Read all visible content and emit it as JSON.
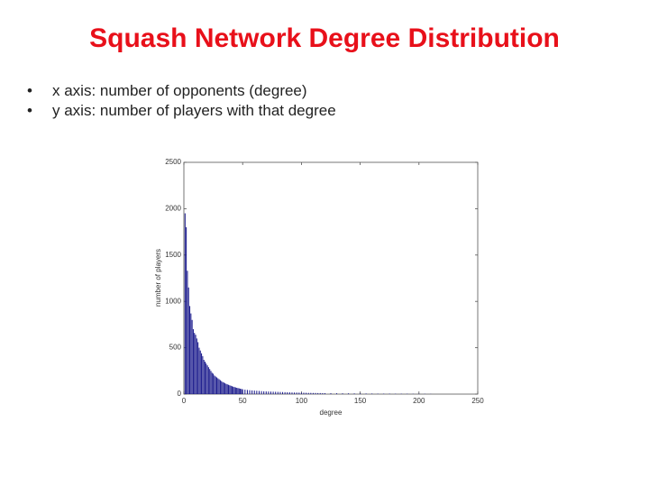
{
  "header": {
    "title": "Squash Network Degree Distribution"
  },
  "bullets": [
    "x axis: number of opponents (degree)",
    "y axis: number of players with that degree"
  ],
  "chart_data": {
    "type": "bar",
    "x_label": "degree",
    "y_label": "number of players",
    "color": "#1a1a8c",
    "x": [
      1,
      2,
      3,
      4,
      5,
      6,
      7,
      8,
      9,
      10,
      11,
      12,
      13,
      14,
      15,
      16,
      17,
      18,
      19,
      20,
      21,
      22,
      23,
      24,
      25,
      26,
      27,
      28,
      29,
      30,
      31,
      32,
      33,
      34,
      35,
      36,
      37,
      38,
      39,
      40,
      41,
      42,
      43,
      44,
      45,
      46,
      47,
      48,
      49,
      50,
      52,
      54,
      56,
      58,
      60,
      62,
      64,
      66,
      68,
      70,
      72,
      74,
      76,
      78,
      80,
      82,
      84,
      86,
      88,
      90,
      92,
      94,
      96,
      98,
      100,
      102,
      104,
      106,
      108,
      110,
      112,
      114,
      116,
      118,
      120,
      125,
      130,
      135,
      140,
      145,
      150,
      155,
      160,
      165,
      170,
      175,
      180,
      185,
      190,
      195,
      200,
      205,
      210
    ],
    "values": [
      1950,
      1800,
      1330,
      1150,
      950,
      870,
      800,
      700,
      660,
      640,
      600,
      560,
      500,
      470,
      440,
      410,
      370,
      350,
      330,
      310,
      290,
      270,
      250,
      230,
      220,
      200,
      190,
      180,
      170,
      160,
      150,
      140,
      130,
      125,
      118,
      110,
      105,
      100,
      95,
      90,
      85,
      80,
      76,
      72,
      68,
      65,
      62,
      58,
      55,
      52,
      48,
      45,
      42,
      40,
      38,
      36,
      34,
      32,
      30,
      29,
      28,
      27,
      26,
      25,
      24,
      23,
      22,
      21,
      20,
      19,
      18,
      17,
      17,
      16,
      15,
      15,
      14,
      13,
      13,
      12,
      12,
      11,
      11,
      10,
      10,
      9,
      9,
      8,
      8,
      7,
      7,
      6,
      6,
      5,
      5,
      5,
      4,
      4,
      4,
      3,
      3,
      3,
      2
    ],
    "xlim": [
      0,
      250
    ],
    "ylim": [
      0,
      2500
    ],
    "xticks": [
      0,
      50,
      100,
      150,
      200,
      250
    ],
    "yticks": [
      0,
      500,
      1000,
      1500,
      2000,
      2500
    ]
  }
}
